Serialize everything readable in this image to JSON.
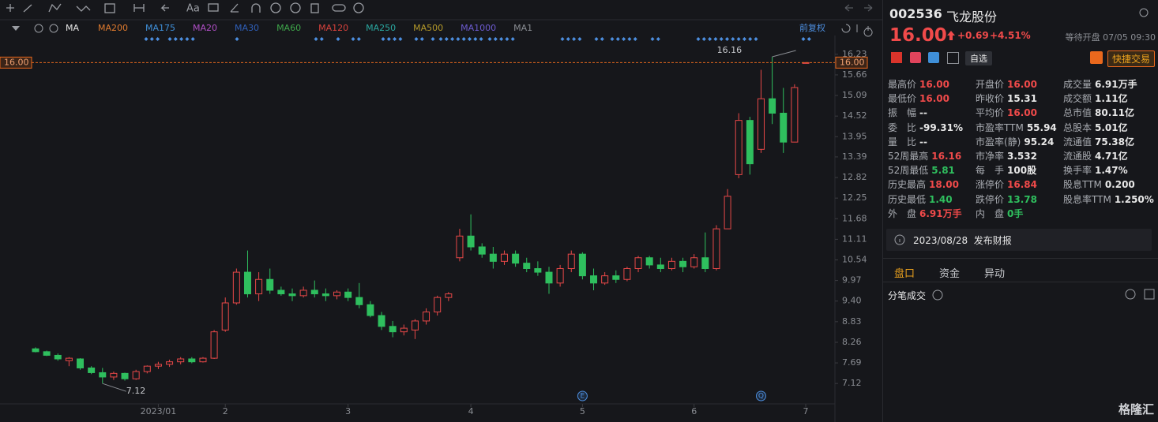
{
  "toolbar": {
    "text_tool": "Aa"
  },
  "ma_legend": {
    "prefix": "MA",
    "items": [
      {
        "label": "MA200",
        "color": "#e07b2e"
      },
      {
        "label": "MA175",
        "color": "#3f8fd8"
      },
      {
        "label": "MA20",
        "color": "#b04fc6"
      },
      {
        "label": "MA30",
        "color": "#2f5fb8"
      },
      {
        "label": "MA60",
        "color": "#3ea64a"
      },
      {
        "label": "MA120",
        "color": "#d8423c"
      },
      {
        "label": "MA250",
        "color": "#2aa7a0"
      },
      {
        "label": "MA500",
        "color": "#b59a2a"
      },
      {
        "label": "MA1000",
        "color": "#6d5bd0"
      },
      {
        "label": "MA1",
        "color": "#8a8d93"
      }
    ],
    "adjust": "前复权"
  },
  "chart_data": {
    "type": "candlestick",
    "up_color": "#e84848",
    "down_color": "#2fbf5e",
    "categories": [
      null,
      null,
      null,
      null,
      null,
      null,
      null,
      null,
      null,
      null,
      null,
      "2023/01",
      null,
      null,
      null,
      null,
      null,
      "2",
      null,
      null,
      null,
      null,
      null,
      null,
      null,
      null,
      null,
      null,
      "3",
      null,
      null,
      null,
      null,
      null,
      null,
      null,
      null,
      null,
      null,
      "4",
      null,
      null,
      null,
      null,
      null,
      null,
      null,
      null,
      null,
      "5",
      null,
      null,
      null,
      null,
      null,
      null,
      null,
      null,
      null,
      "6",
      null,
      null,
      null,
      null,
      null,
      null,
      null,
      null,
      null,
      "7"
    ],
    "open": [
      8.08,
      8.0,
      7.9,
      7.75,
      7.8,
      7.55,
      7.42,
      7.3,
      7.4,
      7.25,
      7.45,
      7.6,
      7.65,
      7.72,
      7.8,
      7.72,
      7.82,
      8.6,
      9.35,
      10.2,
      9.6,
      10.0,
      9.7,
      9.6,
      9.55,
      9.7,
      9.6,
      9.55,
      9.65,
      9.5,
      9.3,
      9.0,
      8.7,
      8.55,
      8.6,
      8.85,
      9.1,
      9.5,
      10.6,
      11.2,
      10.9,
      10.7,
      10.5,
      10.7,
      10.45,
      10.3,
      10.2,
      9.9,
      10.3,
      10.7,
      10.1,
      9.9,
      10.1,
      10.0,
      10.3,
      10.6,
      10.4,
      10.3,
      10.5,
      10.35,
      10.6,
      10.3,
      11.4,
      12.9,
      14.4,
      13.6,
      15.0,
      14.6,
      13.8,
      16.0
    ],
    "high": [
      8.12,
      8.03,
      7.95,
      7.85,
      7.82,
      7.6,
      7.55,
      7.45,
      7.42,
      7.5,
      7.62,
      7.72,
      7.78,
      7.85,
      7.85,
      7.85,
      8.6,
      9.5,
      10.3,
      10.8,
      10.2,
      10.3,
      9.8,
      9.75,
      9.8,
      9.97,
      9.75,
      9.7,
      9.75,
      9.9,
      9.4,
      9.1,
      8.85,
      8.75,
      8.9,
      9.2,
      9.55,
      9.65,
      11.4,
      11.8,
      11.0,
      10.9,
      10.8,
      10.8,
      10.6,
      10.5,
      10.35,
      10.4,
      10.8,
      10.75,
      10.3,
      10.2,
      10.25,
      10.35,
      10.65,
      10.65,
      10.6,
      10.6,
      10.6,
      10.7,
      11.3,
      11.5,
      12.5,
      14.6,
      14.5,
      15.8,
      16.16,
      15.3,
      15.4,
      16.0
    ],
    "low": [
      7.98,
      7.88,
      7.75,
      7.6,
      7.5,
      7.38,
      7.12,
      7.22,
      7.2,
      7.22,
      7.4,
      7.52,
      7.58,
      7.65,
      7.68,
      7.7,
      7.8,
      8.55,
      9.3,
      9.5,
      9.4,
      9.6,
      9.55,
      9.4,
      9.5,
      9.5,
      9.4,
      9.45,
      9.4,
      9.2,
      8.95,
      8.6,
      8.4,
      8.45,
      8.35,
      8.75,
      9.0,
      9.4,
      10.5,
      10.8,
      10.6,
      10.3,
      10.4,
      10.35,
      10.2,
      10.1,
      9.6,
      9.8,
      10.2,
      10.0,
      9.7,
      9.85,
      9.9,
      9.95,
      10.2,
      10.3,
      10.2,
      10.25,
      10.2,
      10.3,
      10.2,
      10.25,
      11.4,
      12.8,
      12.9,
      13.5,
      14.3,
      13.5,
      13.8,
      16.0
    ],
    "close": [
      8.0,
      7.9,
      7.8,
      7.82,
      7.55,
      7.42,
      7.3,
      7.4,
      7.25,
      7.45,
      7.6,
      7.65,
      7.72,
      7.8,
      7.72,
      7.82,
      8.55,
      9.35,
      10.2,
      9.6,
      10.0,
      9.7,
      9.6,
      9.55,
      9.7,
      9.6,
      9.55,
      9.65,
      9.5,
      9.3,
      9.0,
      8.7,
      8.55,
      8.65,
      8.85,
      9.1,
      9.5,
      9.6,
      11.2,
      10.9,
      10.7,
      10.5,
      10.7,
      10.45,
      10.3,
      10.2,
      9.9,
      10.3,
      10.7,
      10.1,
      9.9,
      10.1,
      10.0,
      10.3,
      10.6,
      10.4,
      10.3,
      10.5,
      10.35,
      10.6,
      10.3,
      11.4,
      12.3,
      14.4,
      13.2,
      15.0,
      14.6,
      13.8,
      15.31,
      16.0
    ],
    "ylim": [
      6.6,
      16.75
    ],
    "yticks": [
      7.12,
      7.69,
      8.26,
      8.83,
      {
        "value": 9.4,
        "label": "9.40"
      },
      9.97,
      10.54,
      11.11,
      11.68,
      12.25,
      12.82,
      13.39,
      13.95,
      14.52,
      15.09,
      15.66,
      16.23
    ],
    "last_price": {
      "value": 16.0,
      "label": "16.00"
    },
    "annotations": [
      {
        "text": "16.16",
        "value": 16.16,
        "index": 66
      },
      {
        "text": "7.12",
        "value": 7.12,
        "index": 6
      }
    ],
    "events": [
      {
        "label": "E",
        "index": 49
      },
      {
        "label": "Q",
        "index": 65
      }
    ],
    "grid": false
  },
  "panel": {
    "code": "002536",
    "name": "飞龙股份",
    "price": "16.00",
    "change": "+0.69",
    "change_pct": "+4.51%",
    "status": "等待开盘 07/05 09:30",
    "watch": "自选",
    "trade": "快捷交易",
    "stats": [
      [
        {
          "label": "最高价",
          "value": "16.00",
          "color": "#f04a4a"
        },
        {
          "label": "开盘价",
          "value": "16.00",
          "color": "#f04a4a"
        },
        {
          "label": "成交量",
          "value": "6.91万手",
          "color": "#e8e8e8"
        }
      ],
      [
        {
          "label": "最低价",
          "value": "16.00",
          "color": "#f04a4a"
        },
        {
          "label": "昨收价",
          "value": "15.31",
          "color": "#e8e8e8"
        },
        {
          "label": "成交额",
          "value": "1.11亿",
          "color": "#e8e8e8"
        }
      ],
      [
        {
          "label": "振　幅",
          "value": "--",
          "color": "#e8e8e8"
        },
        {
          "label": "平均价",
          "value": "16.00",
          "color": "#f04a4a"
        },
        {
          "label": "总市值",
          "value": "80.11亿",
          "color": "#e8e8e8"
        }
      ],
      [
        {
          "label": "委　比",
          "value": "-99.31%",
          "color": "#e8e8e8"
        },
        {
          "label": "市盈率TTM",
          "value": "55.94",
          "color": "#e8e8e8"
        },
        {
          "label": "总股本",
          "value": "5.01亿",
          "color": "#e8e8e8"
        }
      ],
      [
        {
          "label": "量　比",
          "value": "--",
          "color": "#e8e8e8"
        },
        {
          "label": "市盈率(静)",
          "value": "95.24",
          "color": "#e8e8e8"
        },
        {
          "label": "流通值",
          "value": "75.38亿",
          "color": "#e8e8e8"
        }
      ],
      [
        {
          "label": "52周最高",
          "value": "16.16",
          "color": "#f04a4a"
        },
        {
          "label": "市净率",
          "value": "3.532",
          "color": "#e8e8e8"
        },
        {
          "label": "流通股",
          "value": "4.71亿",
          "color": "#e8e8e8"
        }
      ],
      [
        {
          "label": "52周最低",
          "value": "5.81",
          "color": "#2fbf5e"
        },
        {
          "label": "每　手",
          "value": "100股",
          "color": "#e8e8e8"
        },
        {
          "label": "换手率",
          "value": "1.47%",
          "color": "#e8e8e8"
        }
      ],
      [
        {
          "label": "历史最高",
          "value": "18.00",
          "color": "#f04a4a"
        },
        {
          "label": "涨停价",
          "value": "16.84",
          "color": "#f04a4a"
        },
        {
          "label": "股息TTM",
          "value": "0.200",
          "color": "#e8e8e8"
        }
      ],
      [
        {
          "label": "历史最低",
          "value": "1.40",
          "color": "#2fbf5e"
        },
        {
          "label": "跌停价",
          "value": "13.78",
          "color": "#2fbf5e"
        },
        {
          "label": "股息率TTM",
          "value": "1.250%",
          "color": "#e8e8e8"
        }
      ],
      [
        {
          "label": "外　盘",
          "value": "6.91万手",
          "color": "#f04a4a"
        },
        {
          "label": "内　盘",
          "value": "0手",
          "color": "#2fbf5e"
        }
      ]
    ],
    "notice": "2023/08/28  发布财报",
    "tabs": [
      "盘口",
      "资金",
      "异动"
    ],
    "trades": "分笔成交",
    "logo": "格隆汇"
  }
}
